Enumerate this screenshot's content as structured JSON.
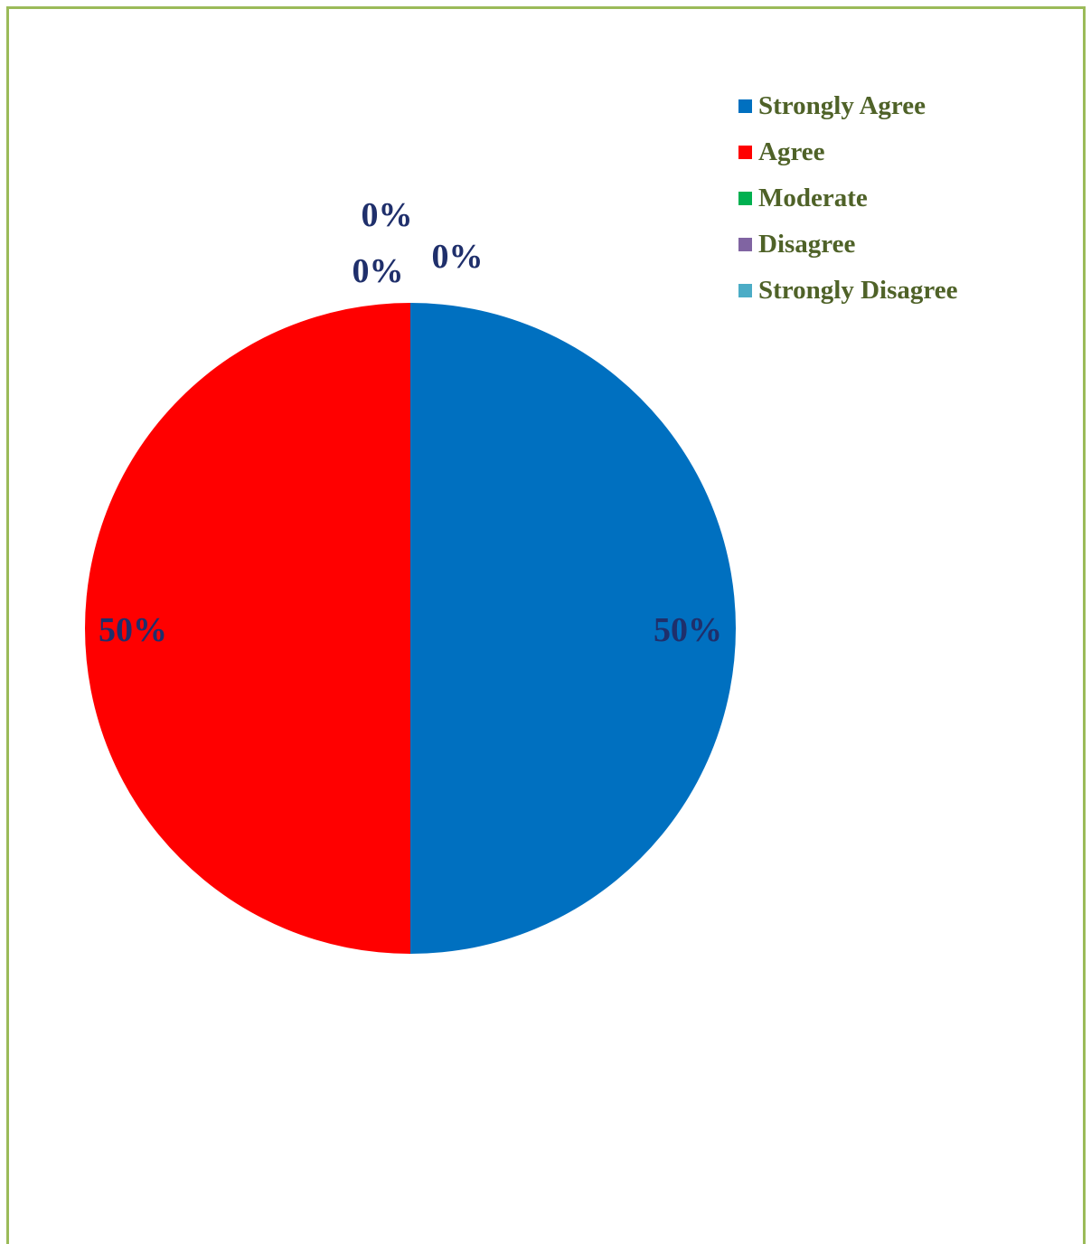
{
  "chart_data": {
    "type": "pie",
    "categories": [
      "Strongly Agree",
      "Agree",
      "Moderate",
      "Disagree",
      "Strongly Disagree"
    ],
    "values": [
      50,
      50,
      0,
      0,
      0
    ],
    "labels": [
      "50%",
      "50%",
      "0%",
      "0%",
      "0%"
    ],
    "colors": [
      "#0070c0",
      "#ff0000",
      "#00b050",
      "#8064a2",
      "#4bacc6"
    ],
    "label_color": "#1f2f6b",
    "legend_color": "#4f6228",
    "legend_position": "top-right"
  },
  "frame": {
    "border_color": "#9bbb59"
  }
}
